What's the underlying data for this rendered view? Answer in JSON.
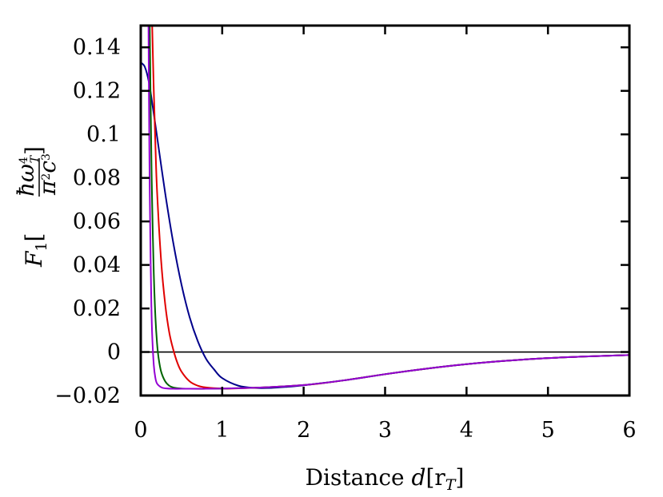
{
  "chart_data": {
    "type": "line",
    "xlabel_text": "Distance ",
    "xlabel_d": "d",
    "xlabel_unit": "[r",
    "xlabel_sub": "T",
    "xlabel_close": "]",
    "ylabel_F": "F",
    "ylabel_sub": "1",
    "ylabel_open": "[",
    "ylabel_numerator": "ħω",
    "ylabel_num_sup": "4",
    "ylabel_num_sub": "T",
    "ylabel_denominator": "π",
    "ylabel_den_sup1": "2",
    "ylabel_den_c": "c",
    "ylabel_den_sup2": "3",
    "ylabel_close": "]",
    "xlim": [
      0,
      6
    ],
    "ylim": [
      -0.02,
      0.15
    ],
    "xticks": [
      0,
      1,
      2,
      3,
      4,
      5,
      6
    ],
    "xtick_labels": [
      "0",
      "1",
      "2",
      "3",
      "4",
      "5",
      "6"
    ],
    "yticks": [
      -0.02,
      0,
      0.02,
      0.04,
      0.06,
      0.08,
      0.1,
      0.12,
      0.14
    ],
    "ytick_labels": [
      "−0.02",
      "0",
      "0.02",
      "0.04",
      "0.06",
      "0.08",
      "0.1",
      "0.12",
      "0.14"
    ],
    "zero_line": true,
    "grid": false,
    "legend": "none",
    "series": [
      {
        "color": "#00008b",
        "x": [
          0,
          0.05,
          0.1,
          0.15,
          0.2,
          0.3,
          0.4,
          0.5,
          0.6,
          0.7,
          0.8,
          0.9,
          1.0,
          1.2,
          1.4,
          1.6,
          1.8,
          2.0,
          2.2,
          2.5,
          3.0,
          3.5,
          4.0,
          4.5,
          5.0,
          5.5,
          6.0
        ],
        "y": [
          0.133,
          0.131,
          0.124,
          0.112,
          0.099,
          0.073,
          0.05,
          0.031,
          0.016,
          0.005,
          -0.003,
          -0.008,
          -0.012,
          -0.0155,
          -0.0165,
          -0.0165,
          -0.016,
          -0.0153,
          -0.0144,
          -0.013,
          -0.0102,
          -0.0077,
          -0.0056,
          -0.004,
          -0.0028,
          -0.002,
          -0.0014
        ]
      },
      {
        "color": "#e00000",
        "x": [
          0.14,
          0.16,
          0.18,
          0.2,
          0.25,
          0.3,
          0.35,
          0.4,
          0.45,
          0.5,
          0.6,
          0.7,
          0.8,
          1.0,
          1.2,
          1.5,
          1.8,
          2.0,
          2.2,
          2.5,
          3.0,
          3.5,
          4.0,
          4.5,
          5.0,
          5.5,
          6.0
        ],
        "y": [
          0.15,
          0.12,
          0.095,
          0.074,
          0.042,
          0.022,
          0.009,
          0.001,
          -0.005,
          -0.009,
          -0.0135,
          -0.0155,
          -0.0163,
          -0.0168,
          -0.0167,
          -0.0163,
          -0.0157,
          -0.0152,
          -0.0145,
          -0.013,
          -0.0102,
          -0.0077,
          -0.0056,
          -0.004,
          -0.0028,
          -0.002,
          -0.0014
        ]
      },
      {
        "color": "#006400",
        "x": [
          0.11,
          0.12,
          0.13,
          0.14,
          0.16,
          0.18,
          0.2,
          0.22,
          0.25,
          0.3,
          0.35,
          0.4,
          0.5,
          0.6,
          0.8,
          1.0,
          1.5,
          2.0,
          2.5,
          3.0,
          3.5,
          4.0,
          4.5,
          5.0,
          5.5,
          6.0
        ],
        "y": [
          0.15,
          0.118,
          0.09,
          0.068,
          0.036,
          0.016,
          0.004,
          -0.003,
          -0.009,
          -0.0135,
          -0.0155,
          -0.0163,
          -0.0168,
          -0.0169,
          -0.0169,
          -0.0168,
          -0.0163,
          -0.0152,
          -0.013,
          -0.0102,
          -0.0077,
          -0.0056,
          -0.004,
          -0.0028,
          -0.002,
          -0.0014
        ]
      },
      {
        "color": "#9400d3",
        "x": [
          0.095,
          0.1,
          0.11,
          0.12,
          0.13,
          0.14,
          0.16,
          0.18,
          0.2,
          0.25,
          0.3,
          0.4,
          0.5,
          0.7,
          1.0,
          1.5,
          2.0,
          2.5,
          3.0,
          3.5,
          4.0,
          4.5,
          5.0,
          5.5,
          6.0
        ],
        "y": [
          0.15,
          0.12,
          0.075,
          0.044,
          0.022,
          0.008,
          -0.006,
          -0.012,
          -0.0145,
          -0.0162,
          -0.0167,
          -0.0169,
          -0.0169,
          -0.0169,
          -0.0168,
          -0.0163,
          -0.0152,
          -0.013,
          -0.0102,
          -0.0077,
          -0.0056,
          -0.004,
          -0.0028,
          -0.002,
          -0.0014
        ]
      }
    ]
  }
}
